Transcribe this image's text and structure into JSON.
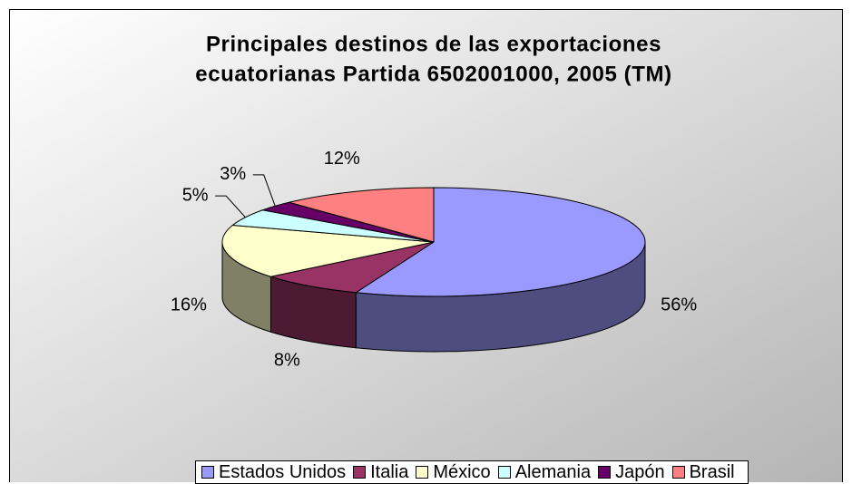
{
  "chart_data": {
    "type": "pie3d",
    "title": [
      "Principales destinos de las exportaciones",
      "ecuatorianas Partida 6502001000, 2005 (TM)"
    ],
    "categories": [
      "Estados Unidos",
      "Italia",
      "México",
      "Alemania",
      "Japón",
      "Brasil"
    ],
    "values": [
      56,
      8,
      16,
      5,
      3,
      12
    ],
    "value_labels": [
      "56%",
      "8%",
      "16%",
      "5%",
      "3%",
      "12%"
    ],
    "colors": [
      "#9999ff",
      "#993366",
      "#ffffcc",
      "#ccffff",
      "#660066",
      "#ff8080"
    ],
    "legend": "bottom"
  }
}
